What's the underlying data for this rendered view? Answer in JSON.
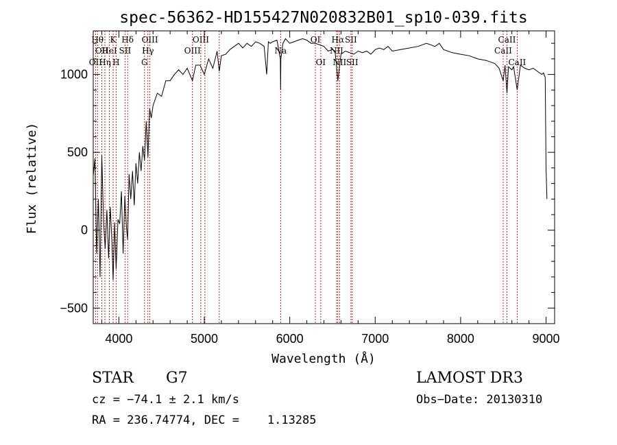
{
  "chart_data": {
    "type": "line",
    "title": "spec-56362-HD155427N020832B01_sp10-039.fits",
    "xlabel": "Wavelength (Å)",
    "ylabel": "Flux (relative)",
    "xlim": [
      3700,
      9100
    ],
    "ylim": [
      -600,
      1280
    ],
    "xticks": [
      4000,
      5000,
      6000,
      7000,
      8000,
      9000
    ],
    "yticks": [
      -500,
      0,
      500,
      1000
    ],
    "grid": false,
    "series": [
      {
        "color": "#000000",
        "x": [
          3700,
          3720,
          3740,
          3760,
          3780,
          3800,
          3820,
          3840,
          3860,
          3880,
          3900,
          3920,
          3933,
          3950,
          3968,
          3990,
          4010,
          4030,
          4050,
          4070,
          4090,
          4102,
          4120,
          4140,
          4160,
          4180,
          4200,
          4220,
          4240,
          4260,
          4280,
          4300,
          4320,
          4340,
          4360,
          4380,
          4400,
          4450,
          4500,
          4550,
          4600,
          4650,
          4700,
          4750,
          4800,
          4861,
          4900,
          4950,
          5000,
          5050,
          5100,
          5150,
          5175,
          5200,
          5250,
          5300,
          5350,
          5400,
          5450,
          5500,
          5550,
          5600,
          5650,
          5700,
          5730,
          5750,
          5770,
          5800,
          5850,
          5890,
          5893,
          5896,
          5920,
          5950,
          6000,
          6050,
          6100,
          6150,
          6200,
          6250,
          6300,
          6350,
          6400,
          6450,
          6500,
          6530,
          6563,
          6600,
          6650,
          6700,
          6750,
          6800,
          6850,
          6900,
          6950,
          7000,
          7050,
          7100,
          7150,
          7200,
          7300,
          7400,
          7500,
          7600,
          7700,
          7750,
          7800,
          7900,
          8000,
          8100,
          8200,
          8300,
          8400,
          8450,
          8498,
          8520,
          8542,
          8560,
          8600,
          8620,
          8662,
          8700,
          8750,
          8800,
          8850,
          8900,
          8950,
          8970,
          8990,
          9000,
          9010
        ],
        "y": [
          350,
          460,
          -150,
          200,
          -300,
          480,
          60,
          -120,
          130,
          -180,
          150,
          -90,
          -320,
          50,
          -250,
          70,
          40,
          250,
          -150,
          220,
          10,
          -60,
          360,
          200,
          380,
          160,
          430,
          300,
          500,
          380,
          540,
          450,
          700,
          470,
          780,
          720,
          800,
          880,
          860,
          960,
          960,
          1000,
          1030,
          1000,
          1040,
          960,
          1060,
          1060,
          1000,
          1100,
          1040,
          1150,
          1020,
          1120,
          1130,
          1160,
          1180,
          1200,
          1170,
          1200,
          1180,
          1210,
          1200,
          1180,
          1000,
          1210,
          1200,
          1210,
          1220,
          1100,
          900,
          1100,
          1200,
          1230,
          1200,
          1210,
          1220,
          1230,
          1220,
          1200,
          1200,
          1190,
          1180,
          1150,
          1160,
          1150,
          960,
          1130,
          1150,
          1140,
          1130,
          1150,
          1140,
          1150,
          1130,
          1160,
          1170,
          1160,
          1180,
          1150,
          1160,
          1170,
          1180,
          1200,
          1180,
          1200,
          1160,
          1140,
          1130,
          1120,
          1100,
          1090,
          1070,
          1040,
          960,
          1060,
          880,
          1050,
          1030,
          1050,
          900,
          1060,
          1040,
          1030,
          1040,
          1020,
          1000,
          1010,
          980,
          400,
          200
        ]
      }
    ],
    "lines": [
      {
        "x": 3750,
        "label": "Hθ",
        "row": 1
      },
      {
        "x": 3727,
        "label": "OII",
        "row": 3
      },
      {
        "x": 3800,
        "label": "OII",
        "row": 2
      },
      {
        "x": 3836,
        "label": "Hη",
        "row": 3
      },
      {
        "x": 3889,
        "label": "HeI",
        "row": 2
      },
      {
        "x": 3933,
        "label": "K",
        "row": 1
      },
      {
        "x": 3968,
        "label": "H",
        "row": 3
      },
      {
        "x": 4072,
        "label": "SII",
        "row": 2
      },
      {
        "x": 4102,
        "label": "Hδ",
        "row": 1
      },
      {
        "x": 4300,
        "label": "G",
        "row": 3
      },
      {
        "x": 4340,
        "label": "Hγ",
        "row": 2
      },
      {
        "x": 4363,
        "label": "OIII",
        "row": 1
      },
      {
        "x": 4861,
        "label": "OIII",
        "row": 2
      },
      {
        "x": 4959,
        "label": "OIII",
        "row": 1
      },
      {
        "x": 5007,
        "label": "",
        "row": 0
      },
      {
        "x": 5175,
        "label": "",
        "row": 0
      },
      {
        "x": 5893,
        "label": "Na",
        "row": 2
      },
      {
        "x": 6300,
        "label": "OI",
        "row": 1
      },
      {
        "x": 6363,
        "label": "OI",
        "row": 3
      },
      {
        "x": 6548,
        "label": "NII",
        "row": 2
      },
      {
        "x": 6563,
        "label": "Hα",
        "row": 1
      },
      {
        "x": 6583,
        "label": "NII",
        "row": 3
      },
      {
        "x": 6716,
        "label": "SII",
        "row": 1
      },
      {
        "x": 6731,
        "label": "SII",
        "row": 3
      },
      {
        "x": 8498,
        "label": "CaII",
        "row": 2
      },
      {
        "x": 8542,
        "label": "CaII",
        "row": 1
      },
      {
        "x": 8662,
        "label": "CaII",
        "row": 3
      }
    ]
  },
  "info": {
    "object_class": "STAR",
    "subclass": "G7",
    "survey": "LAMOST DR3",
    "redshift": "cz = −74.1 ± 2.1 km/s",
    "obs_date": "Obs−Date: 20130310",
    "coords": "RA = 236.74774, DEC =    1.13285"
  }
}
